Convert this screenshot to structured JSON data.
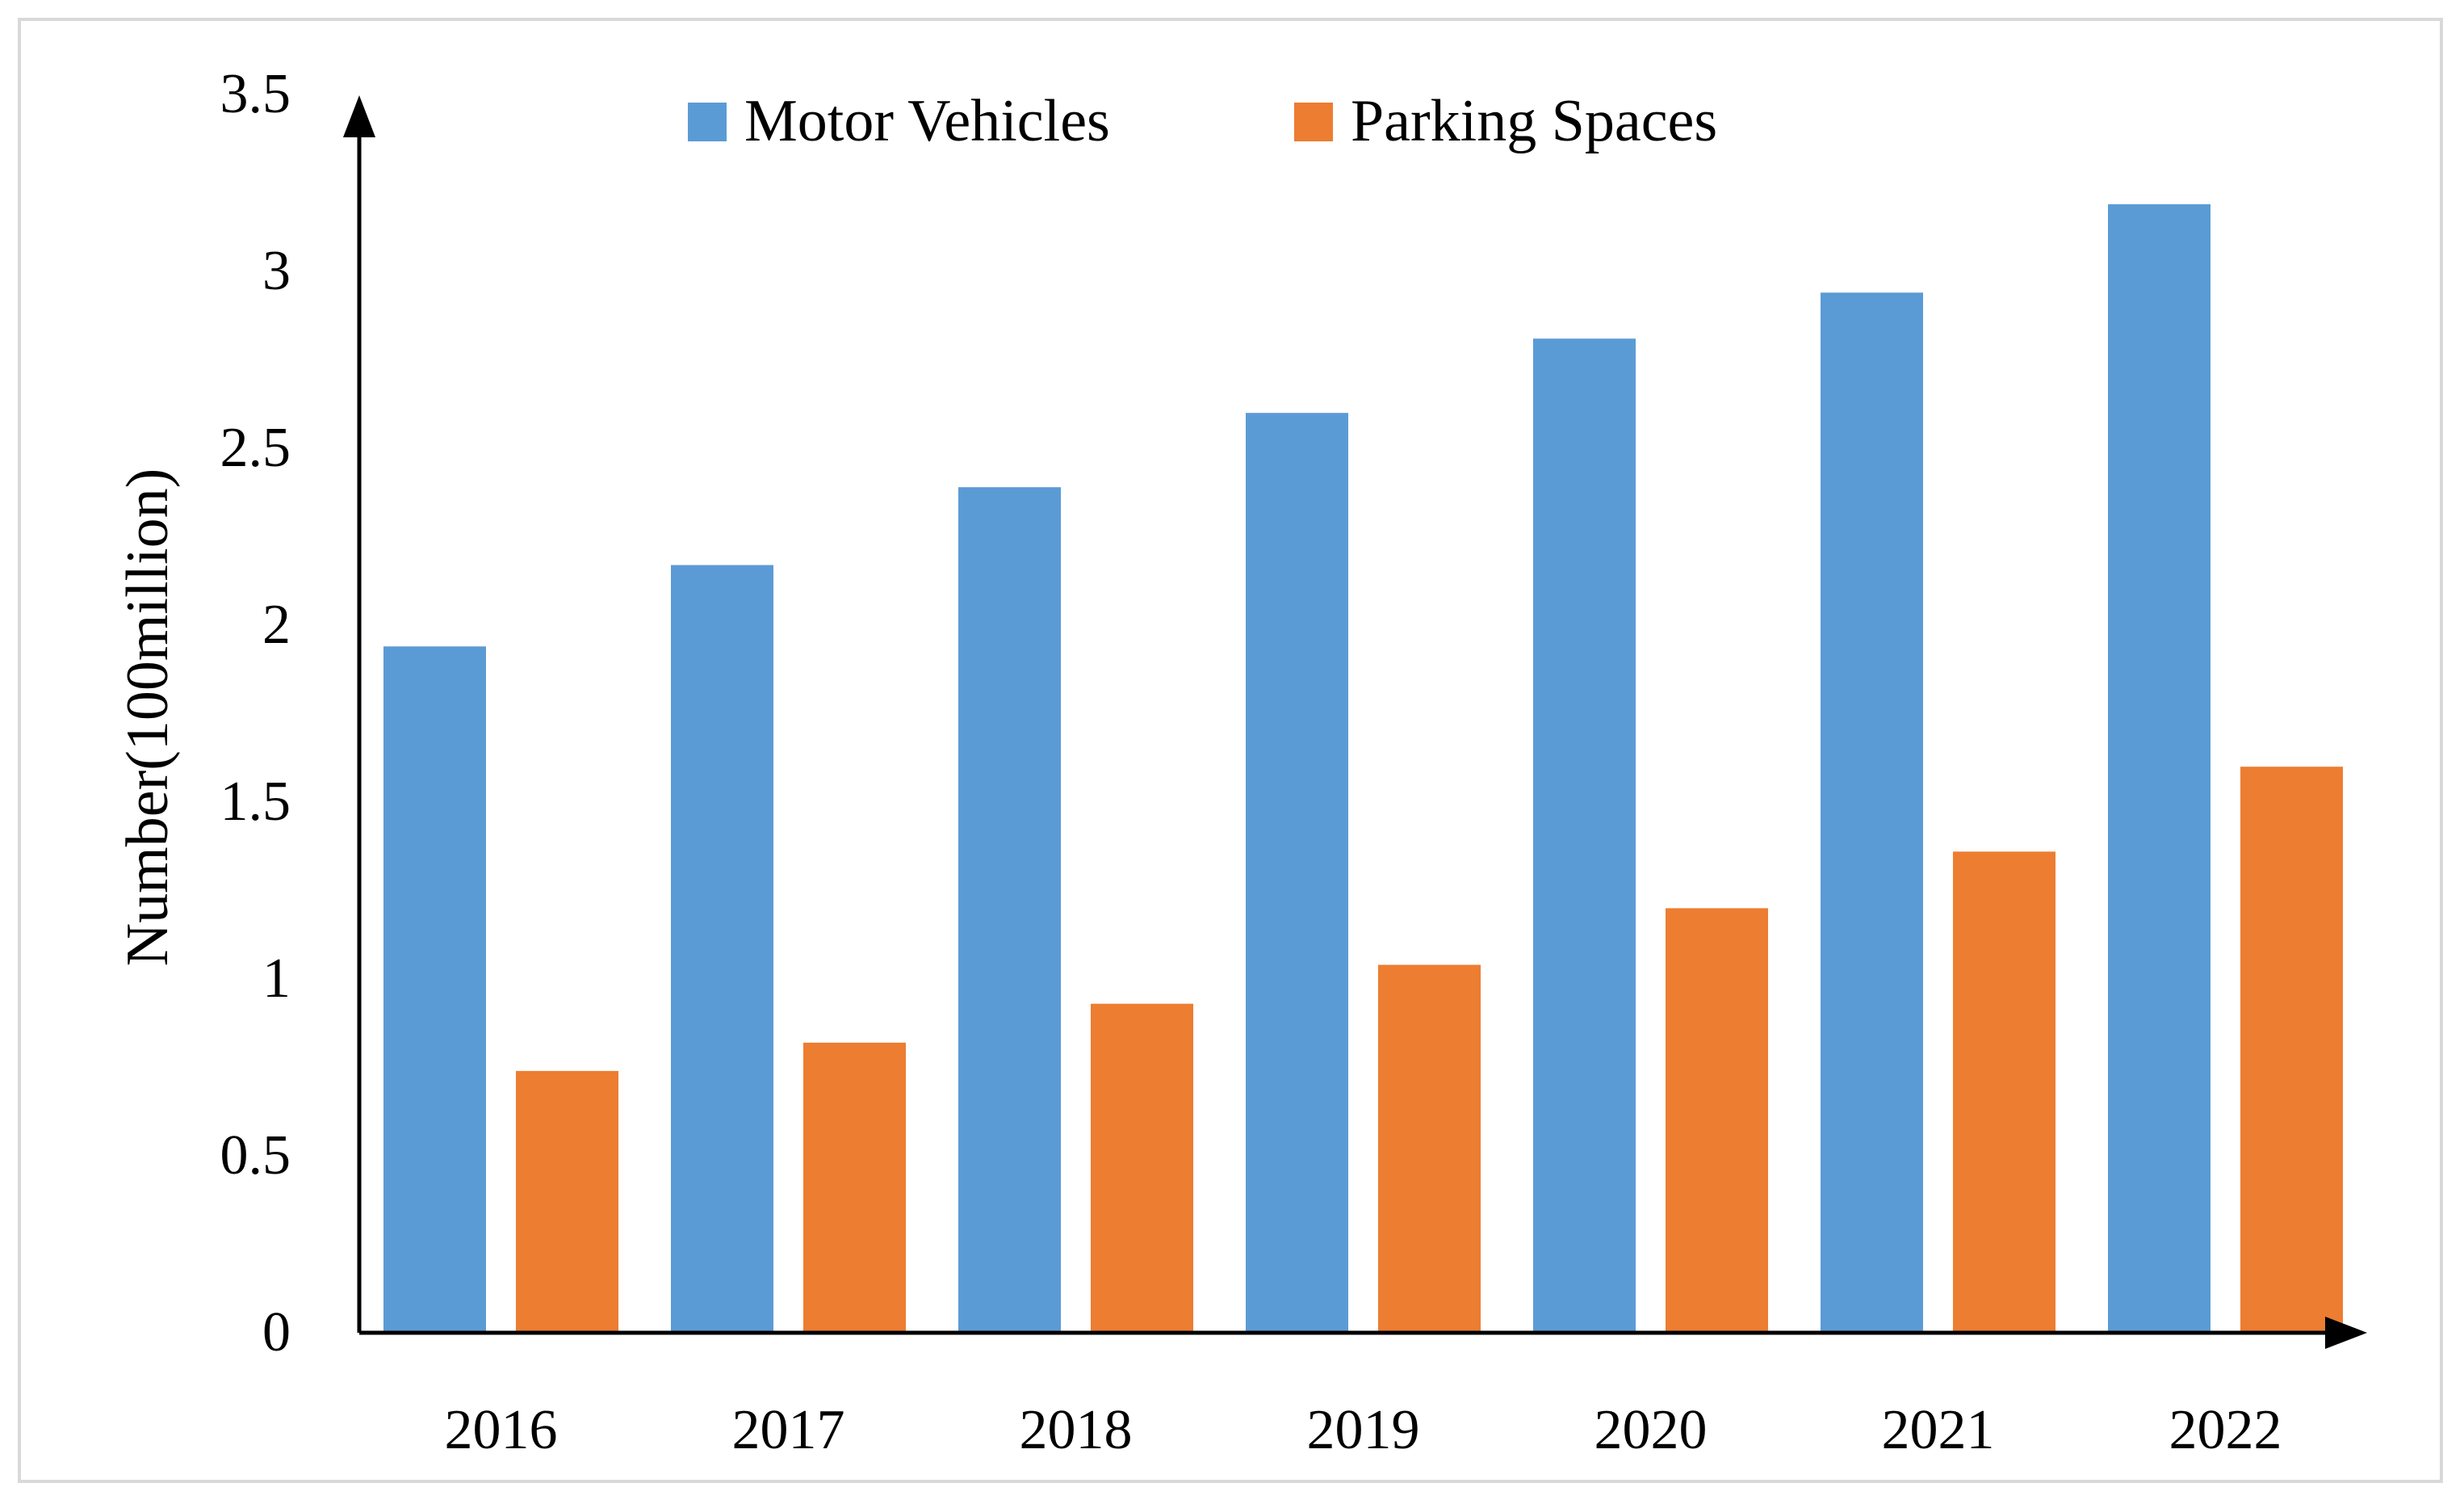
{
  "chart_data": {
    "type": "bar",
    "title": "",
    "xlabel": "",
    "ylabel": "Number(100million)",
    "categories": [
      "2016",
      "2017",
      "2018",
      "2019",
      "2020",
      "2021",
      "2022"
    ],
    "series": [
      {
        "name": "Motor Vehicles",
        "color": "#5b9bd5",
        "values": [
          1.94,
          2.17,
          2.39,
          2.6,
          2.81,
          2.94,
          3.19
        ]
      },
      {
        "name": "Parking Spaces",
        "color": "#ed7d31",
        "values": [
          0.74,
          0.82,
          0.93,
          1.04,
          1.2,
          1.36,
          1.6
        ]
      }
    ],
    "ylim": [
      0,
      3.5
    ],
    "yticks": [
      "0",
      "0.5",
      "1",
      "1.5",
      "2",
      "2.5",
      "3",
      "3.5"
    ],
    "grid": false,
    "legend_position": "top-center"
  }
}
